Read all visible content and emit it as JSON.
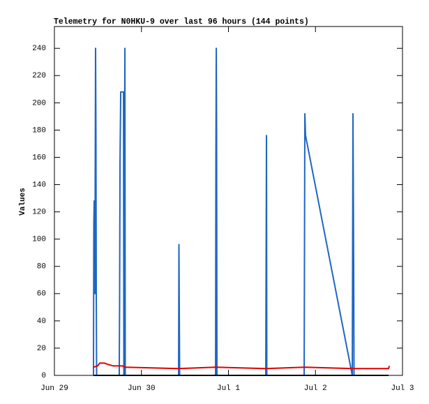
{
  "chart_data": {
    "type": "line",
    "title": "Telemetry for N0HKU-9 over last 96 hours (144 points)",
    "y_label": "Values",
    "xlim": [
      0,
      4
    ],
    "xticks": [
      {
        "value": 0,
        "label": "Jun 29"
      },
      {
        "value": 1,
        "label": "Jun 30"
      },
      {
        "value": 2,
        "label": "Jul 1"
      },
      {
        "value": 3,
        "label": "Jul 2"
      },
      {
        "value": 4,
        "label": "Jul 3"
      }
    ],
    "ylim": [
      0,
      256
    ],
    "yticks": [
      0,
      20,
      40,
      60,
      80,
      100,
      120,
      140,
      160,
      180,
      200,
      220,
      240
    ],
    "series": [
      {
        "color": "#1f66c2",
        "x": [
          0.449,
          0.453,
          0.457,
          0.465,
          0.473,
          0.477,
          0.481,
          0.485,
          0.745,
          0.749,
          0.754,
          0.762,
          0.794,
          0.798,
          0.802,
          0.81,
          0.814,
          1.427,
          1.431,
          1.435,
          1.439,
          1.852,
          1.856,
          1.86,
          1.864,
          1.868,
          2.429,
          2.433,
          2.437,
          2.441,
          2.87,
          2.878,
          2.886,
          3.423,
          3.431,
          3.439,
          3.443
        ],
        "values": [
          0,
          112,
          128,
          60,
          240,
          180,
          60,
          0,
          0,
          52,
          156,
          208,
          208,
          0,
          112,
          240,
          0,
          0,
          96,
          48,
          0,
          0,
          160,
          240,
          176,
          0,
          0,
          88,
          176,
          0,
          0,
          192,
          176,
          0,
          192,
          80,
          0
        ]
      },
      {
        "color": "#000000",
        "x": [
          0.449,
          3.84
        ],
        "values": [
          0,
          0
        ]
      },
      {
        "color": "#e00000",
        "x": [
          0.449,
          0.497,
          0.521,
          0.577,
          0.617,
          0.673,
          0.778,
          0.818,
          1.427,
          1.852,
          2.429,
          2.878,
          3.423,
          3.84,
          3.848
        ],
        "values": [
          6,
          7,
          9,
          9,
          8,
          7,
          7,
          6,
          5,
          6,
          5,
          6,
          5,
          5,
          7
        ]
      }
    ]
  }
}
